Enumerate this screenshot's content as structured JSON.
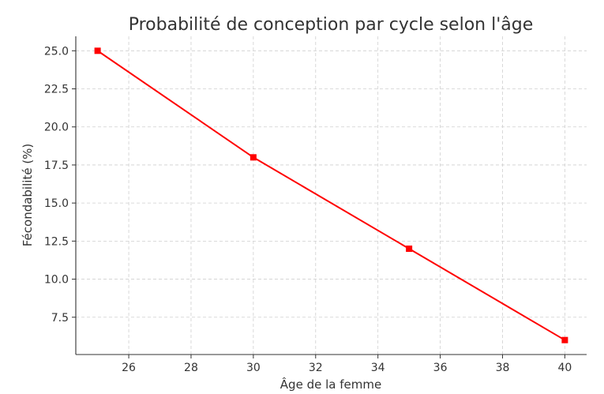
{
  "chart_data": {
    "type": "line",
    "title": "Probabilité de conception par cycle selon l'âge",
    "xlabel": "Âge de la femme",
    "ylabel": "Fécondabilité (%)",
    "x": [
      25,
      30,
      35,
      40
    ],
    "series": [
      {
        "values": [
          25,
          18,
          12,
          6
        ],
        "color": "#ff0000",
        "marker": "square"
      }
    ],
    "xlim": [
      24.3,
      40.7
    ],
    "ylim": [
      5.05,
      25.95
    ],
    "xticks": [
      26,
      28,
      30,
      32,
      34,
      36,
      38,
      40
    ],
    "yticks": [
      7.5,
      10.0,
      12.5,
      15.0,
      17.5,
      20.0,
      22.5,
      25.0
    ],
    "ytick_labels": [
      "7.5",
      "10.0",
      "12.5",
      "15.0",
      "17.5",
      "20.0",
      "22.5",
      "25.0"
    ],
    "grid": true,
    "legend": false
  }
}
